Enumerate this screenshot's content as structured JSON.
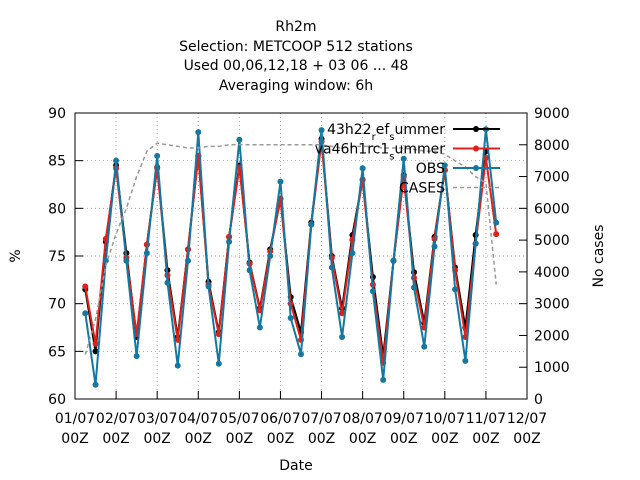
{
  "chart_data": {
    "type": "line",
    "title": [
      "Rh2m",
      "Selection: METCOOP    512 stations",
      "Used  00,06,12,18  + 03 06 ... 48",
      "Averaging window:  6h"
    ],
    "xlabel": "Date",
    "ylabel": "%",
    "y2label": "No cases",
    "x": [
      "01/07 06Z",
      "01/07 12Z",
      "01/07 18Z",
      "02/07 00Z",
      "02/07 06Z",
      "02/07 12Z",
      "02/07 18Z",
      "03/07 00Z",
      "03/07 06Z",
      "03/07 12Z",
      "03/07 18Z",
      "04/07 00Z",
      "04/07 06Z",
      "04/07 12Z",
      "04/07 18Z",
      "05/07 00Z",
      "05/07 06Z",
      "05/07 12Z",
      "05/07 18Z",
      "06/07 00Z",
      "06/07 06Z",
      "06/07 12Z",
      "06/07 18Z",
      "07/07 00Z",
      "07/07 06Z",
      "07/07 12Z",
      "07/07 18Z",
      "08/07 00Z",
      "08/07 06Z",
      "08/07 12Z",
      "08/07 18Z",
      "09/07 00Z",
      "09/07 06Z",
      "09/07 12Z",
      "09/07 18Z",
      "10/07 00Z",
      "10/07 06Z",
      "10/07 12Z",
      "10/07 18Z",
      "11/07 00Z",
      "11/07 06Z"
    ],
    "series": [
      {
        "name": "43h22_ref_summer",
        "color": "#000000",
        "values": [
          71.5,
          65,
          76.5,
          84.5,
          75.3,
          66.5,
          76.2,
          84.3,
          73.5,
          66.5,
          75.7,
          85.5,
          72.3,
          67,
          77,
          84.5,
          74.3,
          69.5,
          75.7,
          81,
          70.7,
          67,
          78.5,
          87.3,
          75,
          69.5,
          77.2,
          83,
          72.8,
          64.5,
          74.5,
          83.5,
          73.3,
          68,
          77,
          84,
          73.8,
          67.5,
          77.2,
          86,
          null
        ]
      },
      {
        "name": "va46h1rc1_summer",
        "color": "#e0201a",
        "values": [
          71.8,
          65.8,
          76.8,
          84.2,
          74.8,
          66.8,
          76.2,
          84.2,
          73,
          66.2,
          75.7,
          85.5,
          72,
          66.8,
          77,
          84.3,
          74.2,
          69.3,
          75.5,
          81,
          70,
          66.2,
          78.3,
          87,
          74.8,
          69,
          76.7,
          83,
          72,
          63.8,
          74.5,
          83.3,
          72.7,
          67.5,
          76.8,
          84,
          73.5,
          66.5,
          76.3,
          85.3,
          77.3
        ]
      },
      {
        "name": "OBS",
        "color": "#1478a0",
        "values": [
          69,
          61.5,
          74.5,
          85,
          74.5,
          64.5,
          75.3,
          85.5,
          72.2,
          63.5,
          74.5,
          88,
          71.8,
          63.7,
          76.5,
          87.2,
          73.5,
          67.5,
          75,
          82.8,
          68.5,
          64.7,
          78.3,
          88.2,
          73.8,
          66.5,
          75.3,
          84.2,
          71.3,
          62,
          74.5,
          85.2,
          71.7,
          65.5,
          76,
          84.5,
          71.5,
          64,
          76.3,
          88.3,
          78.5
        ]
      },
      {
        "name": "CASES",
        "color": "#999999",
        "axis": "y2",
        "dashed": true,
        "values": [
          1400,
          2500,
          4200,
          5200,
          6000,
          7000,
          7800,
          8050,
          8000,
          7950,
          7900,
          7900,
          7950,
          7950,
          8000,
          8000,
          8000,
          8000,
          8000,
          8000,
          8000,
          8000,
          8000,
          8000,
          7950,
          7900,
          7950,
          7950,
          7950,
          7900,
          7900,
          7900,
          7850,
          7800,
          7800,
          7700,
          7500,
          7300,
          7000,
          6800,
          3600
        ]
      }
    ],
    "xlim": [
      "01/07 00Z",
      "12/07 00Z"
    ],
    "xticks": [
      "01/07 00Z",
      "02/07 00Z",
      "03/07 00Z",
      "04/07 00Z",
      "05/07 00Z",
      "06/07 00Z",
      "07/07 00Z",
      "08/07 00Z",
      "09/07 00Z",
      "10/07 00Z",
      "11/07 00Z",
      "12/07 00Z"
    ],
    "ylim": [
      60,
      90
    ],
    "yticks": [
      60,
      65,
      70,
      75,
      80,
      85,
      90
    ],
    "y2lim": [
      0,
      9000
    ],
    "y2ticks": [
      0,
      1000,
      2000,
      3000,
      4000,
      5000,
      6000,
      7000,
      8000,
      9000
    ],
    "grid": true,
    "legend": "upper right"
  }
}
